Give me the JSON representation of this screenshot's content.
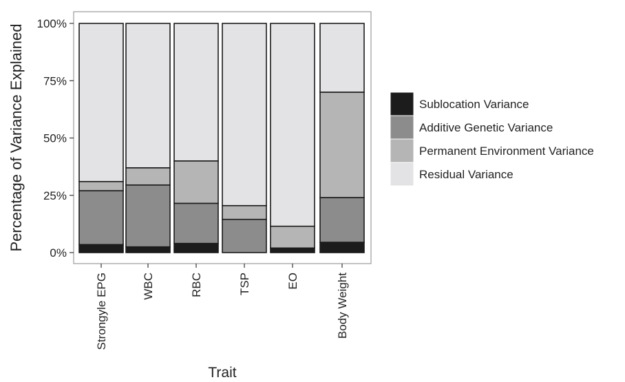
{
  "chart_data": {
    "type": "bar",
    "stacked": true,
    "title": "",
    "xlabel": "Trait",
    "ylabel": "Percentage of Variance Explained",
    "ylim": [
      0,
      100
    ],
    "y_ticks": [
      "0%",
      "25%",
      "50%",
      "75%",
      "100%"
    ],
    "categories": [
      "Strongyle EPG",
      "WBC",
      "RBC",
      "TSP",
      "EO",
      "Body Weight"
    ],
    "series": [
      {
        "name": "Sublocation Variance",
        "color": "#1c1c1c",
        "values": [
          3.5,
          2.5,
          4,
          0,
          2,
          4.5
        ]
      },
      {
        "name": "Additive Genetic Variance",
        "color": "#8c8c8c",
        "values": [
          23.5,
          27,
          17.5,
          14.5,
          0,
          19.5
        ]
      },
      {
        "name": "Permanent Environment Variance",
        "color": "#b5b5b5",
        "values": [
          4,
          7.5,
          18.5,
          6,
          9.5,
          46
        ]
      },
      {
        "name": "Residual Variance",
        "color": "#e3e3e5",
        "values": [
          69,
          63,
          60,
          79.5,
          88.5,
          30
        ]
      }
    ],
    "legend_position": "right",
    "grid": false
  }
}
